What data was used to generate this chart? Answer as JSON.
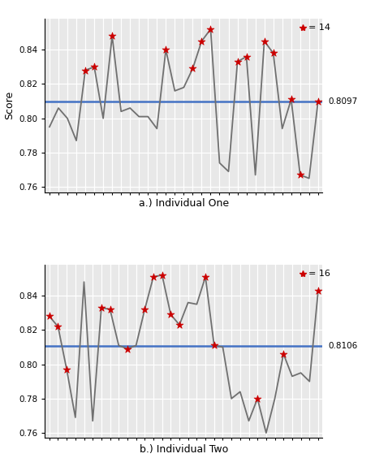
{
  "chart1": {
    "title": "a.) Individual One",
    "hline": 0.8097,
    "hline_label": "0.8097",
    "star_count": "14",
    "y_all": [
      0.795,
      0.806,
      0.8,
      0.787,
      0.828,
      0.83,
      0.8,
      0.848,
      0.804,
      0.806,
      0.801,
      0.801,
      0.794,
      0.84,
      0.816,
      0.818,
      0.829,
      0.845,
      0.852,
      0.774,
      0.769,
      0.833,
      0.836,
      0.767,
      0.845,
      0.838,
      0.794,
      0.811,
      0.767,
      0.765,
      0.81
    ],
    "marked_indices": [
      4,
      5,
      7,
      13,
      16,
      17,
      18,
      21,
      22,
      24,
      25,
      27,
      28,
      30
    ]
  },
  "chart2": {
    "title": "b.) Individual Two",
    "hline": 0.8106,
    "hline_label": "0.8106",
    "star_count": "16",
    "y_all": [
      0.828,
      0.822,
      0.797,
      0.769,
      0.848,
      0.767,
      0.833,
      0.832,
      0.811,
      0.809,
      0.811,
      0.832,
      0.851,
      0.852,
      0.829,
      0.823,
      0.836,
      0.835,
      0.851,
      0.811,
      0.81,
      0.78,
      0.784,
      0.767,
      0.78,
      0.76,
      0.78,
      0.806,
      0.793,
      0.795,
      0.79,
      0.843
    ],
    "marked_indices": [
      0,
      1,
      2,
      6,
      7,
      9,
      11,
      12,
      13,
      14,
      15,
      18,
      19,
      24,
      27,
      31
    ]
  },
  "ylim": [
    0.757,
    0.858
  ],
  "yticks": [
    0.76,
    0.78,
    0.8,
    0.82,
    0.84
  ],
  "line_color": "#707070",
  "marker_color": "#cc0000",
  "hline_color": "#4472c4",
  "bg_color": "#e8e8e8",
  "grid_color": "#ffffff",
  "ylabel": "Score",
  "figsize": [
    4.62,
    5.8
  ],
  "dpi": 100
}
